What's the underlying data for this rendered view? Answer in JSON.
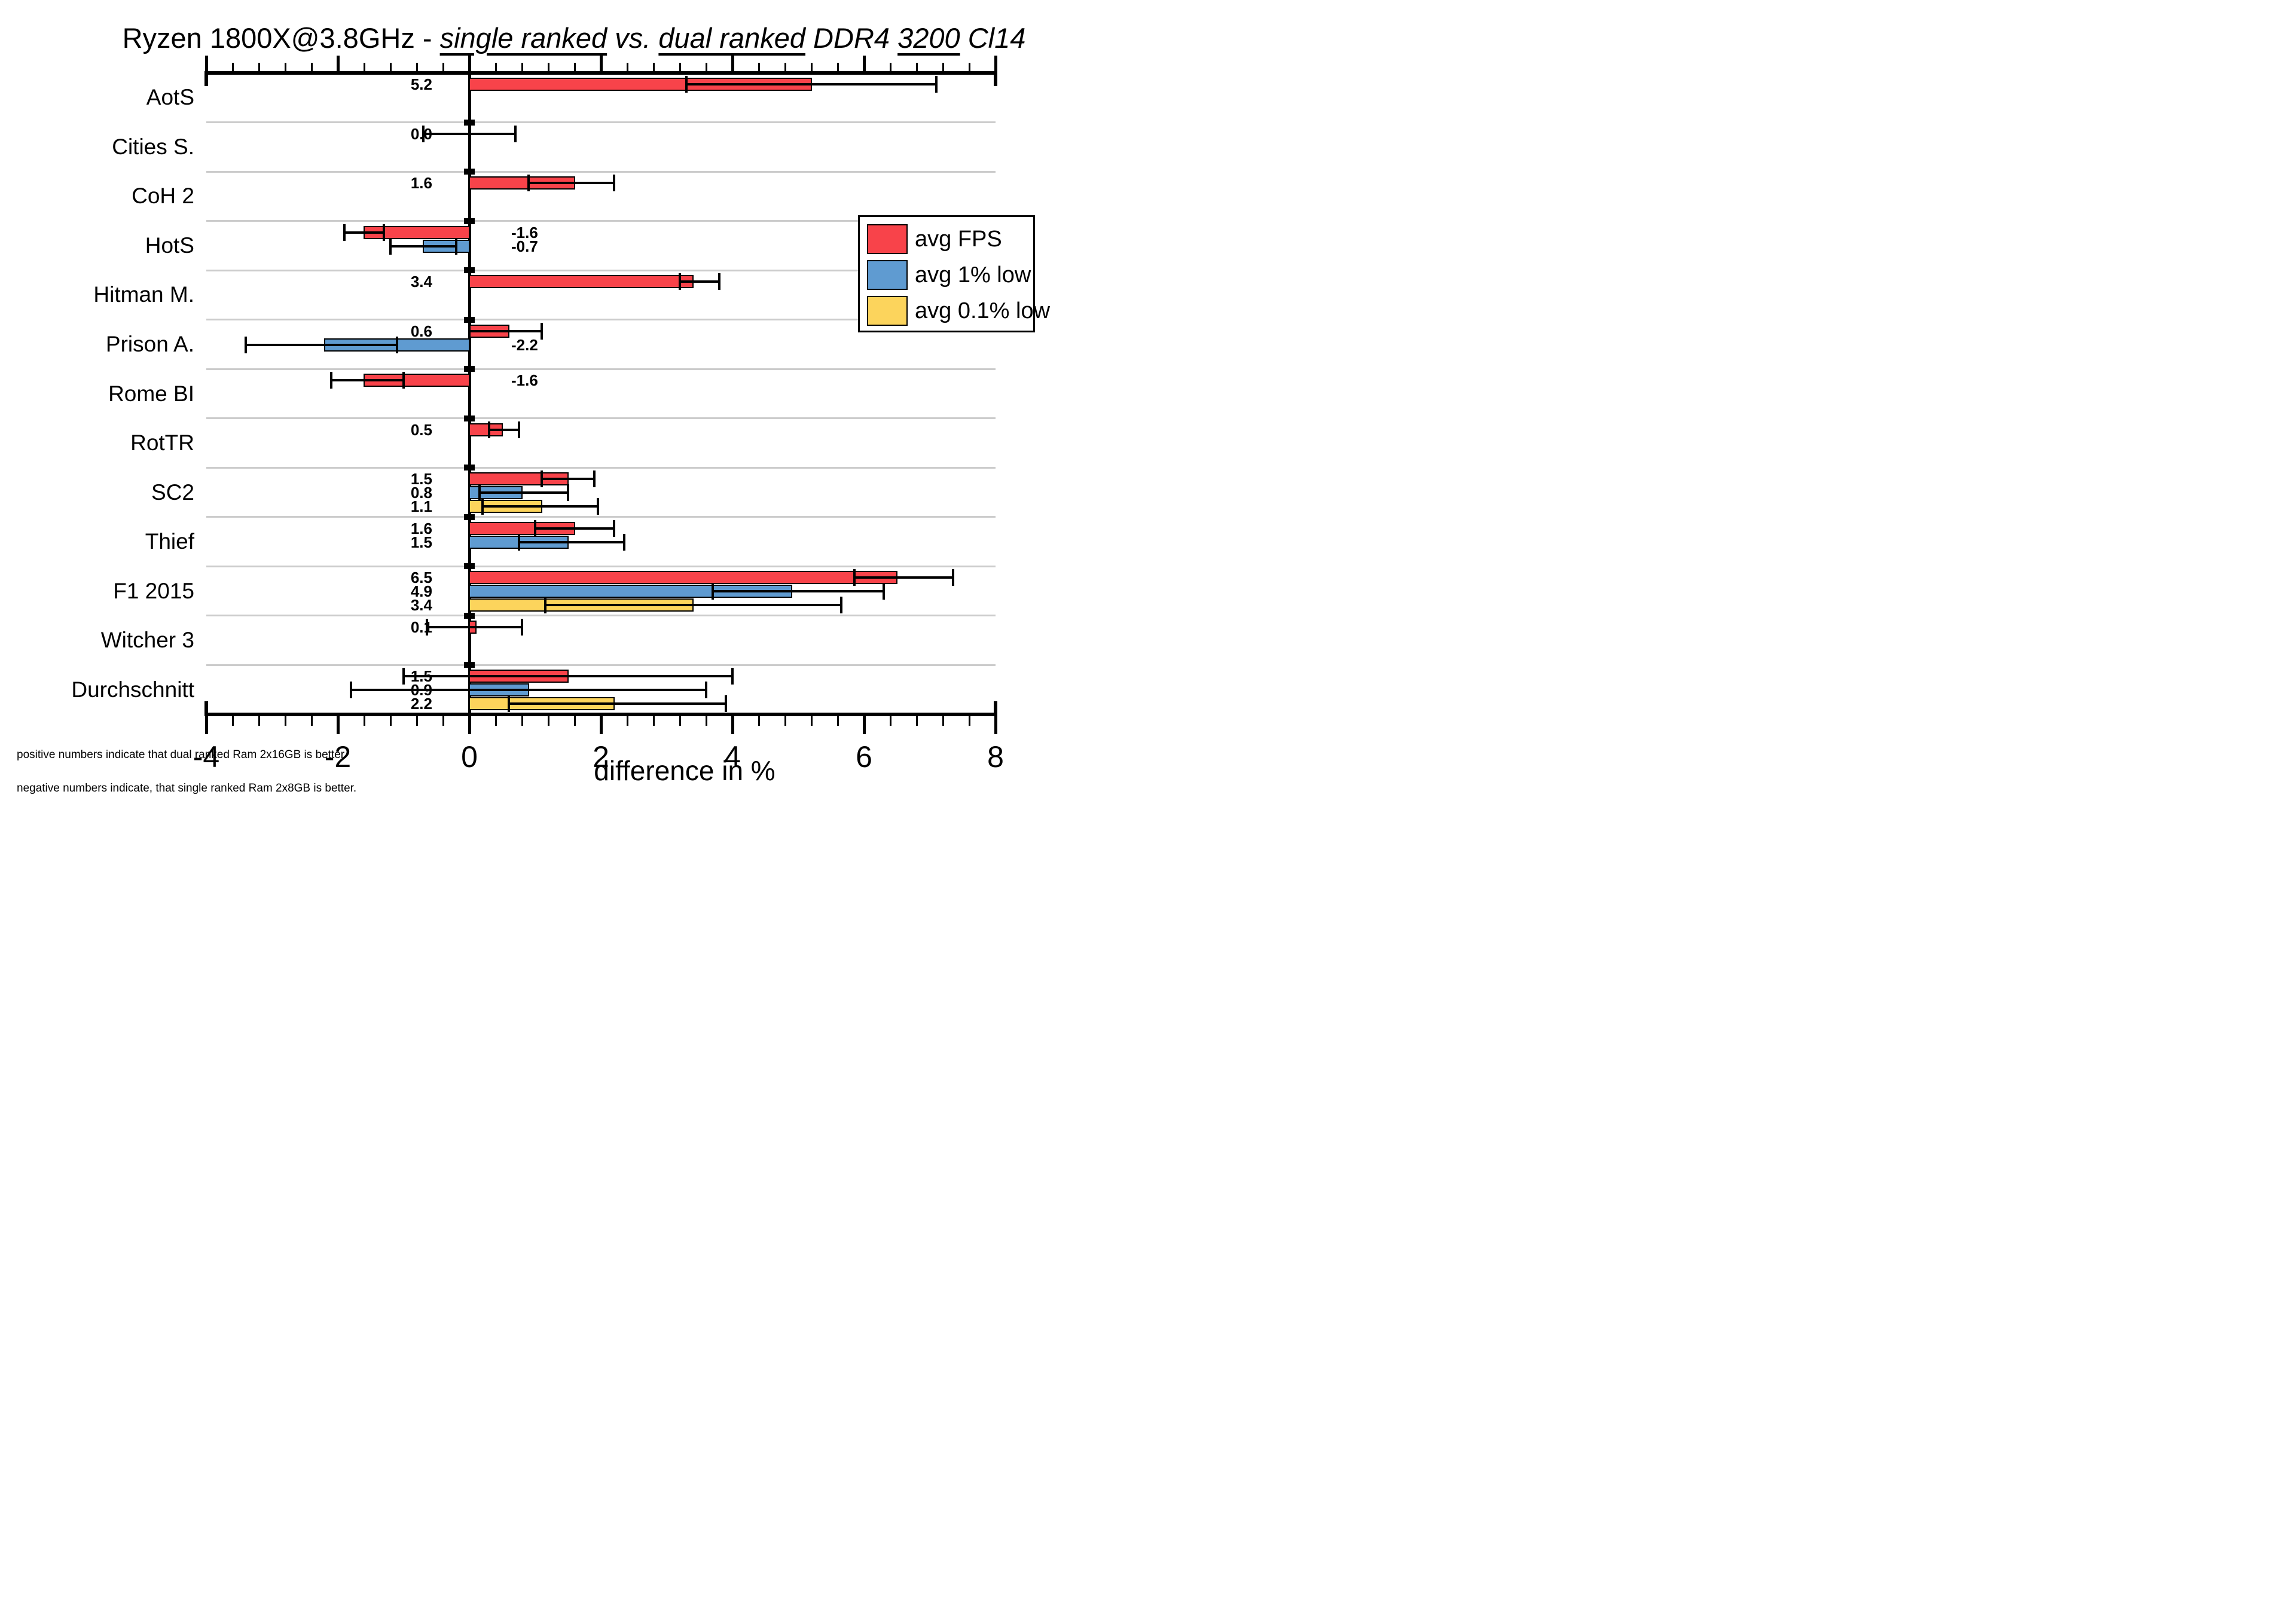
{
  "title": {
    "segments": [
      {
        "text": "Ryzen 1800X@3.8GHz - ",
        "italic": false,
        "underline": false
      },
      {
        "text": "single ranked",
        "italic": true,
        "underline": true
      },
      {
        "text": " vs. ",
        "italic": true,
        "underline": false
      },
      {
        "text": "dual ranked",
        "italic": true,
        "underline": true
      },
      {
        "text": " DDR4 ",
        "italic": true,
        "underline": false
      },
      {
        "text": "3200",
        "italic": true,
        "underline": true
      },
      {
        "text": " Cl14",
        "italic": true,
        "underline": false
      }
    ]
  },
  "legend": {
    "items": [
      {
        "label": "avg FPS",
        "color": "#F8434A"
      },
      {
        "label": "avg 1% low",
        "color": "#5F9BD1"
      },
      {
        "label": "avg 0.1% low",
        "color": "#FCD45C"
      }
    ]
  },
  "xaxis": {
    "label": "difference in %",
    "min": -4,
    "max": 8,
    "major_tick_step": 2,
    "minor_tick_step": 0.4,
    "tick_labels": [
      "-4",
      "-2",
      "0",
      "2",
      "4",
      "6",
      "8"
    ]
  },
  "footnotes": {
    "line1": "positive numbers indicate that dual ranked Ram 2x16GB is better.",
    "line2": "negative numbers indicate, that single ranked Ram 2x8GB is better."
  },
  "chart_data": {
    "type": "bar",
    "orientation": "horizontal",
    "unit": "%",
    "xlim": [
      -4,
      8
    ],
    "grid": "horizontal-category-separators",
    "legend_position": "upper-right-inside",
    "categories": [
      "AotS",
      "Cities S.",
      "CoH 2",
      "HotS",
      "Hitman M.",
      "Prison A.",
      "Rome BI",
      "RotTR",
      "SC2",
      "Thief",
      "F1 2015",
      "Witcher 3",
      "Durchschnitt"
    ],
    "rows": [
      {
        "category": "AotS",
        "bars": [
          {
            "series": "avg FPS",
            "value": 5.2,
            "value_label": "5.2",
            "error_low": 3.3,
            "error_high": 7.1
          }
        ]
      },
      {
        "category": "Cities S.",
        "bars": [
          {
            "series": "avg FPS",
            "value": 0.0,
            "value_label": "0.0",
            "error_low": -0.7,
            "error_high": 0.7
          }
        ]
      },
      {
        "category": "CoH 2",
        "bars": [
          {
            "series": "avg FPS",
            "value": 1.6,
            "value_label": "1.6",
            "error_low": 0.9,
            "error_high": 2.2
          }
        ]
      },
      {
        "category": "HotS",
        "bars": [
          {
            "series": "avg FPS",
            "value": -1.6,
            "value_label": "-1.6",
            "error_low": -1.9,
            "error_high": -1.3
          },
          {
            "series": "avg 1% low",
            "value": -0.7,
            "value_label": "-0.7",
            "error_low": -1.2,
            "error_high": -0.2
          }
        ]
      },
      {
        "category": "Hitman M.",
        "bars": [
          {
            "series": "avg FPS",
            "value": 3.4,
            "value_label": "3.4",
            "error_low": 3.2,
            "error_high": 3.8
          }
        ]
      },
      {
        "category": "Prison A.",
        "bars": [
          {
            "series": "avg FPS",
            "value": 0.6,
            "value_label": "0.6",
            "error_low": 0.0,
            "error_high": 1.1
          },
          {
            "series": "avg 1% low",
            "value": -2.2,
            "value_label": "-2.2",
            "error_low": -3.4,
            "error_high": -1.1
          }
        ]
      },
      {
        "category": "Rome BI",
        "bars": [
          {
            "series": "avg FPS",
            "value": -1.6,
            "value_label": "-1.6",
            "error_low": -2.1,
            "error_high": -1.0
          }
        ]
      },
      {
        "category": "RotTR",
        "bars": [
          {
            "series": "avg FPS",
            "value": 0.5,
            "value_label": "0.5",
            "error_low": 0.3,
            "error_high": 0.75
          }
        ]
      },
      {
        "category": "SC2",
        "bars": [
          {
            "series": "avg FPS",
            "value": 1.5,
            "value_label": "1.5",
            "error_low": 1.1,
            "error_high": 1.9
          },
          {
            "series": "avg 1% low",
            "value": 0.8,
            "value_label": "0.8",
            "error_low": 0.15,
            "error_high": 1.5
          },
          {
            "series": "avg 0.1% low",
            "value": 1.1,
            "value_label": "1.1",
            "error_low": 0.2,
            "error_high": 1.95
          }
        ]
      },
      {
        "category": "Thief",
        "bars": [
          {
            "series": "avg FPS",
            "value": 1.6,
            "value_label": "1.6",
            "error_low": 1.0,
            "error_high": 2.2
          },
          {
            "series": "avg 1% low",
            "value": 1.5,
            "value_label": "1.5",
            "error_low": 0.75,
            "error_high": 2.35
          }
        ]
      },
      {
        "category": "F1 2015",
        "bars": [
          {
            "series": "avg FPS",
            "value": 6.5,
            "value_label": "6.5",
            "error_low": 5.85,
            "error_high": 7.35
          },
          {
            "series": "avg 1% low",
            "value": 4.9,
            "value_label": "4.9",
            "error_low": 3.7,
            "error_high": 6.3
          },
          {
            "series": "avg 0.1% low",
            "value": 3.4,
            "value_label": "3.4",
            "error_low": 1.15,
            "error_high": 5.65
          }
        ]
      },
      {
        "category": "Witcher 3",
        "bars": [
          {
            "series": "avg FPS",
            "value": 0.1,
            "value_label": "0.1",
            "error_low": -0.65,
            "error_high": 0.8
          }
        ]
      },
      {
        "category": "Durchschnitt",
        "bars": [
          {
            "series": "avg FPS",
            "value": 1.5,
            "value_label": "1.5",
            "error_low": -1.0,
            "error_high": 4.0
          },
          {
            "series": "avg 1% low",
            "value": 0.9,
            "value_label": "0.9",
            "error_low": -1.8,
            "error_high": 3.6
          },
          {
            "series": "avg 0.1% low",
            "value": 2.2,
            "value_label": "2.2",
            "error_low": 0.6,
            "error_high": 3.9
          }
        ]
      }
    ]
  }
}
